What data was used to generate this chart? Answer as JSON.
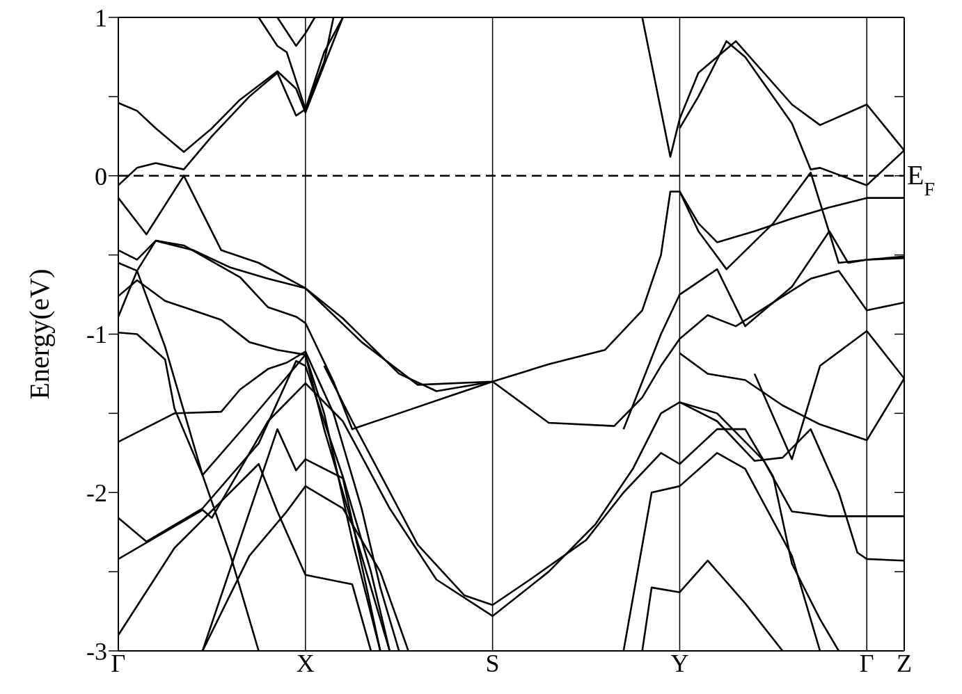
{
  "chart_data": {
    "type": "line",
    "ylabel": "Energy(eV)",
    "ylim": [
      -3,
      1
    ],
    "categories": [
      "Γ",
      null,
      null,
      null,
      null,
      null,
      null,
      null,
      null,
      null,
      null,
      null,
      null,
      null,
      null,
      null,
      null,
      null,
      null,
      null,
      "X",
      null,
      null,
      null,
      null,
      null,
      null,
      null,
      null,
      null,
      null,
      null,
      null,
      null,
      null,
      null,
      null,
      null,
      null,
      null,
      "S",
      null,
      null,
      null,
      null,
      null,
      null,
      null,
      null,
      null,
      null,
      null,
      null,
      null,
      null,
      null,
      null,
      null,
      null,
      null,
      "Y",
      null,
      null,
      null,
      null,
      null,
      null,
      null,
      null,
      null,
      null,
      null,
      null,
      null,
      null,
      null,
      null,
      null,
      null,
      null,
      "Γ",
      null,
      null,
      null,
      "Z"
    ],
    "yticks": [
      -3,
      {
        "value": -2.5,
        "label": null
      },
      -2,
      {
        "value": -1.5,
        "label": null
      },
      -1,
      {
        "value": -0.5,
        "label": null
      },
      0,
      {
        "value": 0.5,
        "label": null
      },
      1
    ],
    "grid": "x",
    "line_style": "solid",
    "ref_lines": [
      {
        "axis": "y",
        "value": 0,
        "label": "E$_{F}$",
        "line_style": "dashed",
        "color": "#000000"
      }
    ],
    "series": [
      {
        "color": "#000000",
        "values": [
          0.46,
          null,
          0.41,
          null,
          0.3,
          null,
          0.2,
          0.15,
          null,
          null,
          0.3,
          null,
          null,
          0.48,
          null,
          null,
          null,
          0.66,
          null,
          0.55,
          0.4,
          null,
          0.7,
          null,
          1.0,
          null,
          null,
          null,
          null,
          null,
          null,
          null,
          null,
          null,
          null,
          null,
          null,
          null,
          null,
          null,
          null,
          null,
          null,
          null,
          null,
          null,
          null,
          null,
          null,
          null,
          null,
          null,
          null,
          null,
          null,
          null,
          null,
          null,
          null,
          null,
          null,
          null,
          null,
          null,
          null,
          null,
          null,
          null,
          null,
          null,
          null,
          null,
          null,
          null,
          null,
          null,
          null,
          null,
          null,
          null,
          null,
          null,
          null,
          null,
          null
        ]
      },
      {
        "color": "#000000",
        "values": [
          -0.06,
          null,
          0.05,
          null,
          0.08,
          null,
          null,
          0.04,
          null,
          null,
          0.25,
          null,
          null,
          null,
          0.5,
          null,
          null,
          0.65,
          null,
          0.38,
          0.42,
          null,
          0.78,
          null,
          1.0,
          null,
          null,
          null,
          null,
          null,
          null,
          null,
          null,
          null,
          null,
          null,
          null,
          null,
          null,
          null,
          null,
          null,
          null,
          null,
          null,
          null,
          null,
          null,
          null,
          null,
          null,
          null,
          null,
          null,
          null,
          null,
          null,
          null,
          null,
          null,
          null,
          null,
          null,
          null,
          null,
          null,
          null,
          null,
          null,
          null,
          null,
          null,
          null,
          null,
          null,
          null,
          null,
          null,
          null,
          null,
          null,
          null,
          null,
          null,
          null
        ]
      },
      {
        "color": "#000000",
        "values": [
          null,
          null,
          null,
          null,
          null,
          null,
          null,
          null,
          null,
          null,
          null,
          null,
          null,
          null,
          null,
          1.0,
          null,
          0.82,
          0.78,
          null,
          0.42,
          null,
          0.72,
          1.0,
          null,
          null,
          null,
          null,
          null,
          null,
          null,
          null,
          null,
          null,
          null,
          null,
          null,
          null,
          null,
          null,
          null,
          null,
          null,
          null,
          null,
          null,
          null,
          null,
          null,
          null,
          null,
          null,
          null,
          null,
          null,
          null,
          null,
          null,
          null,
          null,
          null,
          null,
          null,
          null,
          null,
          null,
          null,
          null,
          null,
          null,
          null,
          null,
          null,
          null,
          null,
          null,
          null,
          null,
          null,
          null,
          null,
          null,
          null,
          null,
          null
        ]
      },
      {
        "color": "#000000",
        "values": [
          null,
          null,
          null,
          null,
          null,
          null,
          null,
          null,
          null,
          null,
          null,
          null,
          null,
          null,
          null,
          null,
          null,
          1.0,
          null,
          0.82,
          0.9,
          1.0,
          null,
          null,
          null,
          null,
          null,
          null,
          null,
          null,
          null,
          null,
          null,
          null,
          null,
          null,
          null,
          null,
          null,
          null,
          null,
          null,
          null,
          null,
          null,
          null,
          null,
          null,
          null,
          null,
          null,
          null,
          null,
          null,
          null,
          null,
          null,
          null,
          null,
          null,
          null,
          null,
          null,
          null,
          null,
          null,
          null,
          null,
          null,
          null,
          null,
          null,
          null,
          null,
          null,
          null,
          null,
          null,
          null,
          null,
          null,
          null,
          null,
          null,
          null
        ]
      },
      {
        "color": "#000000",
        "values": [
          -0.14,
          null,
          null,
          -0.37,
          null,
          null,
          null,
          0.0,
          null,
          null,
          null,
          -0.47,
          null,
          null,
          null,
          -0.55,
          null,
          null,
          null,
          null,
          -0.71,
          null,
          null,
          null,
          null,
          null,
          -1.05,
          null,
          null,
          null,
          null,
          null,
          -1.32,
          null,
          null,
          null,
          null,
          null,
          null,
          null,
          -1.3,
          null,
          null,
          null,
          null,
          null,
          -1.19,
          null,
          null,
          null,
          null,
          null,
          -1.1,
          null,
          null,
          null,
          -0.85,
          null,
          -0.5,
          -0.1,
          -0.1,
          null,
          -0.3,
          null,
          -0.42,
          null,
          null,
          null,
          -0.35,
          null,
          null,
          null,
          -0.27,
          null,
          null,
          null,
          -0.2,
          null,
          null,
          null,
          -0.14,
          null,
          null,
          null,
          -0.14
        ]
      },
      {
        "color": "#000000",
        "values": [
          -0.47,
          null,
          -0.53,
          null,
          -0.41,
          null,
          null,
          -0.44,
          null,
          null,
          null,
          null,
          null,
          -0.64,
          null,
          null,
          -0.83,
          null,
          null,
          -0.89,
          -0.93,
          null,
          null,
          -1.3,
          null,
          -1.6,
          null,
          null,
          null,
          null,
          -1.5,
          null,
          null,
          null,
          null,
          -1.4,
          null,
          null,
          null,
          null,
          -1.3,
          null,
          null,
          null,
          null,
          null,
          -1.56,
          null,
          null,
          null,
          null,
          null,
          null,
          -1.58,
          null,
          null,
          -1.4,
          null,
          -1.2,
          null,
          -1.03,
          null,
          null,
          -0.88,
          null,
          null,
          -0.95,
          null,
          null,
          null,
          -0.8,
          null,
          null,
          null,
          -0.65,
          null,
          null,
          -0.6,
          null,
          null,
          -0.85,
          null,
          null,
          null,
          -0.8
        ]
      },
      {
        "color": "#000000",
        "values": [
          -0.55,
          null,
          -0.6,
          null,
          null,
          -1.08,
          null,
          null,
          null,
          -1.89,
          null,
          null,
          null,
          null,
          -1.55,
          null,
          null,
          null,
          null,
          null,
          -1.13,
          null,
          -1.5,
          null,
          null,
          -2.3,
          null,
          null,
          -3.0,
          null,
          null,
          null,
          null,
          null,
          null,
          null,
          null,
          null,
          null,
          null,
          null,
          null,
          null,
          null,
          null,
          null,
          null,
          null,
          null,
          null,
          null,
          null,
          null,
          null,
          null,
          null,
          null,
          null,
          null,
          null,
          null,
          null,
          null,
          null,
          null,
          null,
          null,
          null,
          null,
          null,
          null,
          null,
          null,
          null,
          null,
          null,
          null,
          null,
          null,
          null,
          null,
          null,
          null,
          null,
          null
        ]
      },
      {
        "color": "#000000",
        "values": [
          -0.76,
          null,
          -0.66,
          null,
          null,
          -0.79,
          null,
          -0.83,
          null,
          null,
          null,
          -0.91,
          null,
          null,
          -1.05,
          null,
          null,
          -1.1,
          null,
          null,
          -1.13,
          null,
          -1.6,
          null,
          null,
          null,
          -2.4,
          null,
          null,
          -3.0,
          null,
          null,
          null,
          null,
          null,
          null,
          null,
          null,
          null,
          null,
          null,
          null,
          null,
          null,
          null,
          null,
          null,
          null,
          null,
          null,
          null,
          null,
          null,
          null,
          null,
          null,
          null,
          null,
          null,
          null,
          null,
          null,
          null,
          null,
          null,
          null,
          null,
          null,
          null,
          null,
          null,
          null,
          null,
          null,
          null,
          null,
          null,
          null,
          null,
          null,
          null,
          null,
          null,
          null,
          null
        ]
      },
      {
        "color": "#000000",
        "values": [
          -0.89,
          null,
          -0.6,
          null,
          -0.41,
          null,
          null,
          null,
          -0.47,
          null,
          null,
          null,
          -0.58,
          null,
          null,
          null,
          -0.65,
          null,
          null,
          null,
          -0.71,
          null,
          null,
          null,
          -0.9,
          null,
          null,
          null,
          null,
          null,
          -1.25,
          null,
          null,
          null,
          -1.36,
          null,
          null,
          null,
          null,
          null,
          -1.3,
          null,
          null,
          null,
          null,
          null,
          null,
          null,
          null,
          null,
          null,
          null,
          null,
          null,
          null,
          null,
          null,
          null,
          null,
          null,
          null,
          null,
          null,
          null,
          null,
          null,
          null,
          null,
          null,
          null,
          null,
          null,
          null,
          null,
          null,
          null,
          null,
          null,
          null,
          null,
          null,
          null,
          null,
          null,
          null
        ]
      },
      {
        "color": "#000000",
        "values": [
          -0.99,
          null,
          -1.0,
          null,
          null,
          -1.16,
          -1.47,
          null,
          null,
          -1.89,
          null,
          null,
          -2.4,
          null,
          null,
          -3.0,
          null,
          null,
          null,
          null,
          null,
          null,
          null,
          null,
          null,
          null,
          null,
          null,
          null,
          null,
          null,
          null,
          null,
          null,
          null,
          null,
          null,
          null,
          null,
          null,
          null,
          null,
          null,
          null,
          null,
          null,
          null,
          null,
          null,
          null,
          null,
          null,
          null,
          null,
          null,
          null,
          null,
          null,
          null,
          null,
          null,
          null,
          null,
          null,
          null,
          null,
          null,
          null,
          null,
          null,
          null,
          null,
          null,
          null,
          null,
          null,
          null,
          null,
          null,
          null,
          null,
          null,
          null,
          null,
          null
        ]
      },
      {
        "color": "#000000",
        "values": [
          -1.68,
          null,
          null,
          null,
          null,
          null,
          -1.5,
          null,
          null,
          null,
          null,
          -1.49,
          null,
          -1.35,
          null,
          null,
          -1.22,
          null,
          -1.18,
          null,
          -1.11,
          null,
          null,
          -1.5,
          null,
          null,
          -2.1,
          null,
          -2.6,
          null,
          -3.0,
          null,
          null,
          null,
          null,
          null,
          null,
          null,
          null,
          null,
          null,
          null,
          null,
          null,
          null,
          null,
          null,
          null,
          null,
          null,
          null,
          null,
          null,
          null,
          null,
          null,
          null,
          null,
          null,
          null,
          null,
          null,
          null,
          null,
          null,
          null,
          null,
          null,
          null,
          null,
          null,
          null,
          null,
          null,
          null,
          null,
          null,
          null,
          null,
          null,
          null,
          null,
          null,
          null,
          null
        ]
      },
      {
        "color": "#000000",
        "values": [
          -2.16,
          null,
          null,
          -2.31,
          null,
          null,
          null,
          null,
          null,
          -2.1,
          null,
          null,
          null,
          null,
          null,
          -1.69,
          null,
          null,
          null,
          -1.17,
          -1.2,
          null,
          null,
          null,
          -1.9,
          null,
          null,
          -2.5,
          null,
          -3.0,
          null,
          null,
          null,
          null,
          null,
          null,
          null,
          null,
          null,
          null,
          null,
          null,
          null,
          null,
          null,
          null,
          null,
          null,
          null,
          null,
          null,
          null,
          null,
          null,
          null,
          null,
          null,
          null,
          null,
          null,
          null,
          null,
          null,
          null,
          null,
          null,
          null,
          null,
          null,
          null,
          null,
          null,
          null,
          null,
          null,
          null,
          null,
          null,
          null,
          null,
          null,
          null,
          null,
          null,
          null
        ]
      },
      {
        "color": "#000000",
        "values": [
          -2.42,
          null,
          null,
          null,
          null,
          null,
          null,
          null,
          null,
          -2.11,
          -2.16,
          null,
          null,
          null,
          null,
          null,
          -1.55,
          null,
          null,
          null,
          -1.31,
          null,
          null,
          null,
          -1.55,
          null,
          null,
          null,
          null,
          -2.1,
          null,
          null,
          null,
          null,
          -2.55,
          null,
          null,
          null,
          null,
          null,
          -2.78,
          null,
          null,
          null,
          null,
          null,
          -2.5,
          null,
          null,
          null,
          null,
          -2.2,
          null,
          null,
          null,
          -1.85,
          null,
          null,
          -1.5,
          null,
          -1.43,
          null,
          null,
          null,
          -1.5,
          null,
          null,
          null,
          null,
          -1.8,
          null,
          null,
          -2.12,
          null,
          null,
          null,
          -2.15,
          null,
          null,
          null,
          -2.15,
          null,
          null,
          null,
          -2.15
        ]
      },
      {
        "color": "#000000",
        "values": [
          -2.9,
          null,
          null,
          null,
          null,
          null,
          -2.35,
          null,
          null,
          null,
          null,
          null,
          null,
          null,
          null,
          -1.82,
          null,
          -2.12,
          null,
          null,
          -2.52,
          null,
          null,
          null,
          null,
          -2.58,
          null,
          -3.0,
          null,
          null,
          null,
          null,
          null,
          null,
          null,
          null,
          null,
          null,
          null,
          null,
          null,
          null,
          null,
          null,
          null,
          null,
          null,
          null,
          null,
          null,
          null,
          null,
          null,
          null,
          null,
          null,
          null,
          null,
          null,
          null,
          null,
          null,
          null,
          null,
          null,
          null,
          null,
          null,
          null,
          null,
          null,
          null,
          null,
          null,
          null,
          null,
          null,
          null,
          null,
          null,
          null,
          null,
          null,
          null,
          null
        ]
      },
      {
        "color": "#000000",
        "values": [
          null,
          null,
          null,
          null,
          null,
          null,
          null,
          null,
          null,
          -3.0,
          null,
          null,
          null,
          null,
          -2.4,
          null,
          null,
          null,
          -2.12,
          null,
          -1.96,
          null,
          null,
          null,
          -2.1,
          null,
          null,
          null,
          -2.5,
          null,
          null,
          -3.0,
          null,
          null,
          null,
          null,
          null,
          null,
          null,
          null,
          null,
          null,
          null,
          null,
          null,
          null,
          null,
          null,
          null,
          null,
          null,
          null,
          null,
          null,
          null,
          null,
          null,
          null,
          null,
          null,
          null,
          null,
          null,
          null,
          null,
          null,
          null,
          null,
          null,
          null,
          null,
          null,
          null,
          null,
          null,
          null,
          null,
          null,
          null,
          null,
          null,
          null,
          null,
          null,
          null
        ]
      },
      {
        "color": "#000000",
        "values": [
          null,
          null,
          null,
          null,
          null,
          null,
          null,
          null,
          null,
          -3.0,
          null,
          null,
          null,
          null,
          null,
          null,
          null,
          -1.6,
          null,
          -1.86,
          -1.79,
          null,
          null,
          null,
          -1.91,
          null,
          null,
          null,
          -3.0,
          null,
          null,
          null,
          null,
          null,
          null,
          null,
          null,
          null,
          null,
          null,
          null,
          null,
          null,
          null,
          null,
          null,
          null,
          null,
          null,
          null,
          null,
          null,
          null,
          null,
          null,
          null,
          null,
          null,
          null,
          null,
          null,
          null,
          null,
          null,
          null,
          null,
          null,
          null,
          null,
          null,
          null,
          null,
          null,
          null,
          null,
          null,
          null,
          null,
          null,
          null,
          null,
          null,
          null,
          null,
          null
        ]
      },
      {
        "color": "#000000",
        "values": [
          null,
          null,
          null,
          null,
          null,
          null,
          null,
          null,
          null,
          null,
          null,
          null,
          null,
          null,
          null,
          null,
          null,
          null,
          null,
          null,
          null,
          null,
          -1.2,
          null,
          null,
          -1.55,
          null,
          null,
          null,
          null,
          null,
          null,
          -2.33,
          null,
          null,
          null,
          null,
          -2.65,
          null,
          null,
          -2.71,
          null,
          null,
          null,
          -2.55,
          null,
          null,
          null,
          null,
          null,
          -2.3,
          null,
          null,
          null,
          -2.0,
          null,
          null,
          null,
          -1.75,
          null,
          -1.82,
          null,
          null,
          null,
          -1.6,
          null,
          null,
          -1.6,
          null,
          null,
          -1.9,
          null,
          -2.45,
          null,
          null,
          -2.8,
          null,
          -3.0,
          null,
          null,
          null,
          null,
          null,
          null,
          null
        ]
      },
      {
        "color": "#000000",
        "values": [
          null,
          null,
          null,
          null,
          null,
          null,
          null,
          null,
          null,
          null,
          null,
          null,
          null,
          null,
          null,
          null,
          null,
          null,
          null,
          null,
          null,
          null,
          null,
          null,
          null,
          null,
          null,
          null,
          null,
          null,
          null,
          null,
          null,
          null,
          null,
          null,
          null,
          null,
          null,
          null,
          null,
          null,
          null,
          null,
          null,
          null,
          null,
          null,
          null,
          null,
          null,
          null,
          null,
          null,
          -3.0,
          null,
          null,
          -2.0,
          null,
          null,
          -1.96,
          null,
          null,
          null,
          -1.75,
          null,
          null,
          -1.85,
          null,
          null,
          null,
          null,
          -2.4,
          null,
          null,
          -3.0,
          null,
          null,
          null,
          null,
          null,
          null,
          null,
          null,
          null
        ]
      },
      {
        "color": "#000000",
        "values": [
          null,
          null,
          null,
          null,
          null,
          null,
          null,
          null,
          null,
          null,
          null,
          null,
          null,
          null,
          null,
          null,
          null,
          null,
          null,
          null,
          null,
          null,
          null,
          null,
          null,
          null,
          null,
          null,
          null,
          null,
          null,
          null,
          null,
          null,
          null,
          null,
          null,
          null,
          null,
          null,
          null,
          null,
          null,
          null,
          null,
          null,
          null,
          null,
          null,
          null,
          null,
          null,
          null,
          null,
          null,
          null,
          -3.0,
          -2.6,
          null,
          null,
          -2.63,
          null,
          null,
          -2.43,
          null,
          null,
          null,
          -2.7,
          null,
          null,
          null,
          -3.0,
          null,
          null,
          null,
          null,
          null,
          null,
          null,
          null,
          null,
          null,
          null,
          null,
          null
        ]
      },
      {
        "color": "#000000",
        "values": [
          null,
          null,
          null,
          null,
          null,
          null,
          null,
          null,
          null,
          null,
          null,
          null,
          null,
          null,
          null,
          null,
          null,
          null,
          null,
          null,
          null,
          null,
          null,
          null,
          null,
          null,
          null,
          null,
          null,
          null,
          null,
          null,
          null,
          null,
          null,
          null,
          null,
          null,
          null,
          null,
          null,
          null,
          null,
          null,
          null,
          null,
          null,
          null,
          null,
          null,
          null,
          null,
          null,
          null,
          null,
          null,
          null,
          null,
          null,
          null,
          -1.12,
          null,
          null,
          -1.25,
          null,
          null,
          null,
          -1.29,
          null,
          null,
          null,
          -1.45,
          null,
          null,
          null,
          -1.57,
          null,
          null,
          null,
          null,
          -1.67,
          null,
          null,
          null,
          -1.28
        ]
      },
      {
        "color": "#000000",
        "values": [
          null,
          null,
          null,
          null,
          null,
          null,
          null,
          null,
          null,
          null,
          null,
          null,
          null,
          null,
          null,
          null,
          null,
          null,
          null,
          null,
          null,
          null,
          null,
          null,
          null,
          null,
          null,
          null,
          null,
          null,
          null,
          null,
          null,
          null,
          null,
          null,
          null,
          null,
          null,
          null,
          null,
          null,
          null,
          null,
          null,
          null,
          null,
          null,
          null,
          null,
          null,
          null,
          null,
          null,
          null,
          null,
          null,
          null,
          null,
          null,
          -1.43,
          null,
          null,
          null,
          -1.55,
          null,
          null,
          null,
          -1.8,
          null,
          null,
          -1.78,
          null,
          null,
          -1.6,
          null,
          null,
          -2.0,
          null,
          -2.38,
          -2.42,
          null,
          null,
          null,
          -2.43
        ]
      },
      {
        "color": "#000000",
        "values": [
          null,
          null,
          null,
          null,
          null,
          null,
          null,
          null,
          null,
          null,
          null,
          null,
          null,
          null,
          null,
          null,
          null,
          null,
          null,
          null,
          null,
          null,
          null,
          null,
          null,
          null,
          null,
          null,
          null,
          null,
          null,
          null,
          null,
          null,
          null,
          null,
          null,
          null,
          null,
          null,
          null,
          null,
          null,
          null,
          null,
          null,
          null,
          null,
          null,
          null,
          null,
          null,
          null,
          null,
          null,
          null,
          null,
          null,
          null,
          null,
          null,
          null,
          null,
          null,
          null,
          null,
          null,
          null,
          -1.25,
          null,
          null,
          null,
          -1.79,
          null,
          null,
          -1.2,
          null,
          null,
          null,
          null,
          -0.98,
          null,
          null,
          null,
          -1.28
        ]
      },
      {
        "color": "#000000",
        "values": [
          null,
          null,
          null,
          null,
          null,
          null,
          null,
          null,
          null,
          null,
          null,
          null,
          null,
          null,
          null,
          null,
          null,
          null,
          null,
          null,
          null,
          null,
          null,
          null,
          null,
          null,
          null,
          null,
          null,
          null,
          null,
          null,
          null,
          null,
          null,
          null,
          null,
          null,
          null,
          null,
          null,
          null,
          null,
          null,
          null,
          null,
          null,
          null,
          null,
          null,
          null,
          null,
          null,
          null,
          null,
          null,
          1.0,
          null,
          null,
          0.12,
          0.36,
          null,
          0.65,
          null,
          null,
          null,
          0.85,
          null,
          null,
          null,
          null,
          null,
          0.45,
          null,
          null,
          0.32,
          null,
          null,
          null,
          null,
          0.45,
          null,
          null,
          null,
          0.16
        ]
      },
      {
        "color": "#000000",
        "values": [
          null,
          null,
          null,
          null,
          null,
          null,
          null,
          null,
          null,
          null,
          null,
          null,
          null,
          null,
          null,
          null,
          null,
          null,
          null,
          null,
          null,
          null,
          null,
          null,
          null,
          null,
          null,
          null,
          null,
          null,
          null,
          null,
          null,
          null,
          null,
          null,
          null,
          null,
          null,
          null,
          null,
          null,
          null,
          null,
          null,
          null,
          null,
          null,
          null,
          null,
          null,
          null,
          null,
          null,
          null,
          null,
          null,
          null,
          null,
          null,
          0.3,
          null,
          0.5,
          null,
          null,
          0.85,
          null,
          0.75,
          null,
          null,
          null,
          null,
          0.33,
          null,
          0.04,
          0.05,
          null,
          null,
          null,
          null,
          -0.06,
          null,
          null,
          null,
          0.16
        ]
      },
      {
        "color": "#000000",
        "values": [
          null,
          null,
          null,
          null,
          null,
          null,
          null,
          null,
          null,
          null,
          null,
          null,
          null,
          null,
          null,
          null,
          null,
          null,
          null,
          null,
          null,
          null,
          null,
          null,
          null,
          null,
          null,
          null,
          null,
          null,
          null,
          null,
          null,
          null,
          null,
          null,
          null,
          null,
          null,
          null,
          null,
          null,
          null,
          null,
          null,
          null,
          null,
          null,
          null,
          null,
          null,
          null,
          null,
          null,
          null,
          null,
          null,
          null,
          null,
          null,
          -0.1,
          null,
          -0.35,
          null,
          null,
          -0.59,
          null,
          null,
          null,
          null,
          -0.3,
          null,
          null,
          null,
          0.02,
          null,
          null,
          -0.55,
          null,
          null,
          -0.53,
          null,
          null,
          null,
          -0.52
        ]
      },
      {
        "color": "#000000",
        "values": [
          null,
          null,
          null,
          null,
          null,
          null,
          null,
          null,
          null,
          null,
          null,
          null,
          null,
          null,
          null,
          null,
          null,
          null,
          null,
          null,
          null,
          null,
          null,
          null,
          null,
          null,
          null,
          null,
          null,
          null,
          null,
          null,
          null,
          null,
          null,
          null,
          null,
          null,
          null,
          null,
          null,
          null,
          null,
          null,
          null,
          null,
          null,
          null,
          null,
          null,
          null,
          null,
          null,
          null,
          -1.6,
          null,
          null,
          null,
          -1.0,
          null,
          -0.75,
          null,
          null,
          null,
          -0.59,
          null,
          null,
          -0.95,
          null,
          null,
          null,
          null,
          -0.7,
          null,
          null,
          null,
          -0.35,
          null,
          -0.55,
          null,
          -0.53,
          null,
          null,
          null,
          -0.51
        ]
      }
    ]
  }
}
